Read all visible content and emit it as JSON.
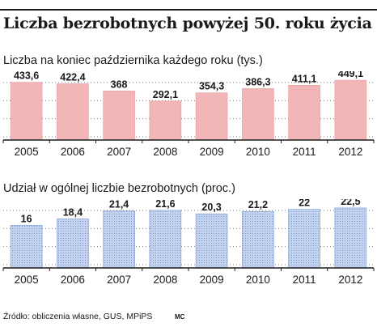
{
  "title": "Liczba bezrobotnych powyżej 50. roku życia",
  "source": "Źródło: obliczenia własne, GUS, MPiPS",
  "author": "MC",
  "chart_data": [
    {
      "type": "bar",
      "subtitle": "Liczba na koniec października każdego roku (tys.)",
      "categories": [
        "2005",
        "2006",
        "2007",
        "2008",
        "2009",
        "2010",
        "2011",
        "2012"
      ],
      "values": [
        433.6,
        422.4,
        368,
        292.1,
        354.3,
        386.3,
        411.1,
        449.1
      ],
      "value_labels": [
        "433,6",
        "422,4",
        "368",
        "292,1",
        "354,3",
        "386,3",
        "411,1",
        "449,1"
      ],
      "ylim": [
        0,
        480
      ],
      "grid": true,
      "bar_color": "#f2b6b8",
      "bar_edge_color": "#e4a0a3"
    },
    {
      "type": "bar",
      "subtitle": "Udział w ogólnej liczbie bezrobotnych (proc.)",
      "categories": [
        "2005",
        "2006",
        "2007",
        "2008",
        "2009",
        "2010",
        "2011",
        "2012"
      ],
      "values": [
        16,
        18.4,
        21.4,
        21.6,
        20.3,
        21.2,
        22,
        22.5
      ],
      "value_labels": [
        "16",
        "18,4",
        "21,4",
        "21,6",
        "20,3",
        "21,2",
        "22",
        "22,5"
      ],
      "ylim": [
        0,
        24
      ],
      "grid": true,
      "bar_color": "#c3d3ef",
      "bar_edge_color": "#7f9bd0"
    }
  ]
}
